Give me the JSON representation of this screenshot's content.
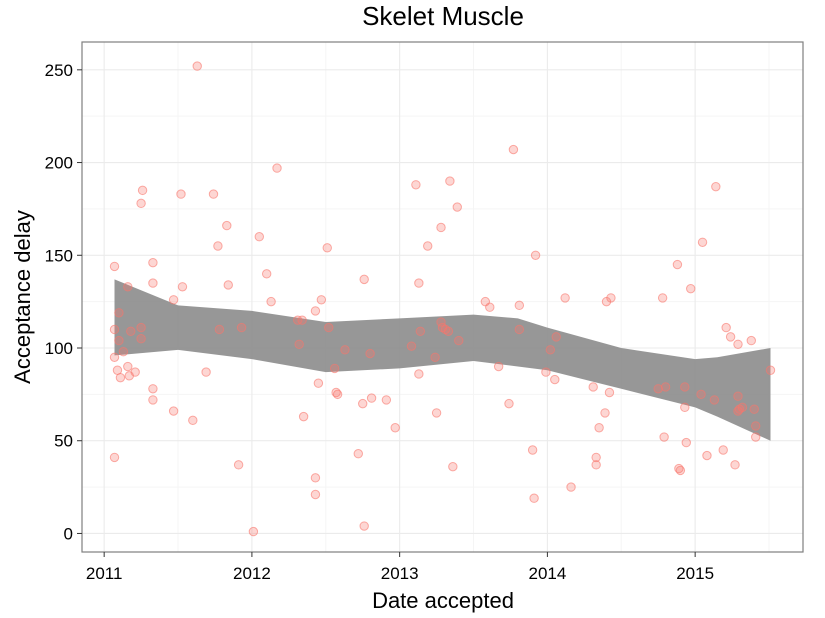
{
  "chart_data": {
    "type": "scatter",
    "title": "Skelet Muscle",
    "xlabel": "Date accepted",
    "ylabel": "Acceptance delay",
    "x_ticks": [
      "2011",
      "2012",
      "2013",
      "2014",
      "2015"
    ],
    "y_ticks": [
      "0",
      "50",
      "100",
      "150",
      "200",
      "250"
    ],
    "xlim": [
      2010.85,
      2015.73
    ],
    "ylim": [
      -10,
      265
    ],
    "grid": true,
    "legend": "none",
    "colors": {
      "points": "#f8766d",
      "band": "#8c8c8c",
      "grid": "#ebebeb",
      "border": "#7f7f7f"
    },
    "points": [
      [
        2011.07,
        144
      ],
      [
        2011.07,
        110
      ],
      [
        2011.07,
        95
      ],
      [
        2011.07,
        41
      ],
      [
        2011.09,
        88
      ],
      [
        2011.1,
        119
      ],
      [
        2011.1,
        104
      ],
      [
        2011.11,
        84
      ],
      [
        2011.13,
        98
      ],
      [
        2011.16,
        90
      ],
      [
        2011.16,
        133
      ],
      [
        2011.17,
        85
      ],
      [
        2011.18,
        109
      ],
      [
        2011.21,
        87
      ],
      [
        2011.25,
        111
      ],
      [
        2011.25,
        105
      ],
      [
        2011.25,
        178
      ],
      [
        2011.26,
        185
      ],
      [
        2011.33,
        146
      ],
      [
        2011.33,
        135
      ],
      [
        2011.33,
        78
      ],
      [
        2011.33,
        72
      ],
      [
        2011.47,
        126
      ],
      [
        2011.47,
        66
      ],
      [
        2011.52,
        183
      ],
      [
        2011.53,
        133
      ],
      [
        2011.6,
        61
      ],
      [
        2011.63,
        252
      ],
      [
        2011.69,
        87
      ],
      [
        2011.74,
        183
      ],
      [
        2011.77,
        155
      ],
      [
        2011.78,
        110
      ],
      [
        2011.83,
        166
      ],
      [
        2011.84,
        134
      ],
      [
        2011.91,
        37
      ],
      [
        2011.93,
        111
      ],
      [
        2012.01,
        1
      ],
      [
        2012.05,
        160
      ],
      [
        2012.1,
        140
      ],
      [
        2012.13,
        125
      ],
      [
        2012.17,
        197
      ],
      [
        2012.31,
        115
      ],
      [
        2012.32,
        102
      ],
      [
        2012.34,
        115
      ],
      [
        2012.35,
        63
      ],
      [
        2012.43,
        120
      ],
      [
        2012.43,
        30
      ],
      [
        2012.43,
        21
      ],
      [
        2012.45,
        81
      ],
      [
        2012.47,
        126
      ],
      [
        2012.51,
        154
      ],
      [
        2012.52,
        111
      ],
      [
        2012.56,
        89
      ],
      [
        2012.57,
        76
      ],
      [
        2012.58,
        75
      ],
      [
        2012.63,
        99
      ],
      [
        2012.72,
        43
      ],
      [
        2012.75,
        70
      ],
      [
        2012.76,
        4
      ],
      [
        2012.76,
        137
      ],
      [
        2012.8,
        97
      ],
      [
        2012.81,
        73
      ],
      [
        2012.91,
        72
      ],
      [
        2012.97,
        57
      ],
      [
        2013.08,
        101
      ],
      [
        2013.11,
        188
      ],
      [
        2013.13,
        86
      ],
      [
        2013.13,
        135
      ],
      [
        2013.14,
        109
      ],
      [
        2013.19,
        155
      ],
      [
        2013.24,
        95
      ],
      [
        2013.25,
        65
      ],
      [
        2013.28,
        165
      ],
      [
        2013.28,
        114
      ],
      [
        2013.29,
        111
      ],
      [
        2013.31,
        110
      ],
      [
        2013.33,
        109
      ],
      [
        2013.34,
        190
      ],
      [
        2013.36,
        36
      ],
      [
        2013.39,
        176
      ],
      [
        2013.4,
        104
      ],
      [
        2013.58,
        125
      ],
      [
        2013.61,
        122
      ],
      [
        2013.67,
        90
      ],
      [
        2013.74,
        70
      ],
      [
        2013.77,
        207
      ],
      [
        2013.81,
        123
      ],
      [
        2013.81,
        110
      ],
      [
        2013.9,
        45
      ],
      [
        2013.91,
        19
      ],
      [
        2013.92,
        150
      ],
      [
        2013.99,
        87
      ],
      [
        2014.02,
        99
      ],
      [
        2014.05,
        83
      ],
      [
        2014.06,
        106
      ],
      [
        2014.12,
        127
      ],
      [
        2014.16,
        25
      ],
      [
        2014.31,
        79
      ],
      [
        2014.33,
        41
      ],
      [
        2014.33,
        37
      ],
      [
        2014.35,
        57
      ],
      [
        2014.39,
        65
      ],
      [
        2014.4,
        125
      ],
      [
        2014.42,
        76
      ],
      [
        2014.43,
        127
      ],
      [
        2014.75,
        78
      ],
      [
        2014.78,
        127
      ],
      [
        2014.79,
        52
      ],
      [
        2014.8,
        79
      ],
      [
        2014.88,
        145
      ],
      [
        2014.89,
        35
      ],
      [
        2014.9,
        34
      ],
      [
        2014.93,
        79
      ],
      [
        2014.93,
        68
      ],
      [
        2014.94,
        49
      ],
      [
        2014.97,
        132
      ],
      [
        2015.04,
        75
      ],
      [
        2015.05,
        157
      ],
      [
        2015.08,
        42
      ],
      [
        2015.13,
        72
      ],
      [
        2015.14,
        187
      ],
      [
        2015.19,
        45
      ],
      [
        2015.21,
        111
      ],
      [
        2015.24,
        106
      ],
      [
        2015.27,
        37
      ],
      [
        2015.29,
        102
      ],
      [
        2015.29,
        74
      ],
      [
        2015.29,
        66
      ],
      [
        2015.3,
        67
      ],
      [
        2015.32,
        68
      ],
      [
        2015.38,
        104
      ],
      [
        2015.4,
        67
      ],
      [
        2015.41,
        58
      ],
      [
        2015.41,
        52
      ],
      [
        2015.51,
        88
      ]
    ],
    "smooth_band": {
      "x": [
        2011.07,
        2011.5,
        2012.0,
        2012.5,
        2013.0,
        2013.5,
        2013.8,
        2014.0,
        2014.5,
        2015.0,
        2015.15,
        2015.51
      ],
      "upper": [
        137,
        123,
        120,
        114,
        116,
        118,
        116,
        111,
        100,
        94,
        95,
        100
      ],
      "lower": [
        96,
        99,
        94,
        87,
        89,
        93,
        90,
        88,
        78,
        68,
        63,
        50
      ]
    }
  }
}
